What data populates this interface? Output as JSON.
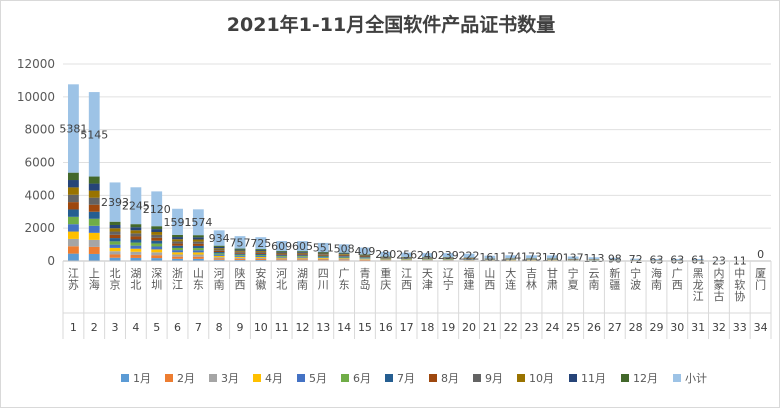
{
  "chart_data": {
    "type": "bar",
    "title": "2021年1-11月全国软件产品证书数量",
    "ylim": [
      0,
      12000
    ],
    "yticks": [
      0,
      2000,
      4000,
      6000,
      8000,
      10000,
      12000
    ],
    "index_labels": [
      "1",
      "2",
      "3",
      "4",
      "5",
      "6",
      "7",
      "8",
      "9",
      "10",
      "11",
      "12",
      "13",
      "14",
      "15",
      "16",
      "17",
      "18",
      "19",
      "20",
      "21",
      "22",
      "23",
      "24",
      "25",
      "26",
      "27",
      "28",
      "29",
      "30",
      "31",
      "32",
      "33",
      "34"
    ],
    "categories": [
      "江苏",
      "上海",
      "北京",
      "湖北",
      "深圳",
      "浙江",
      "山东",
      "河南",
      "陕西",
      "安徽",
      "河北",
      "湖南",
      "四川",
      "广东",
      "青岛",
      "重庆",
      "江西",
      "天津",
      "辽宁",
      "福建",
      "山西",
      "大连",
      "吉林",
      "甘肃",
      "宁夏",
      "云南",
      "新疆",
      "宁波",
      "海南",
      "广西",
      "黑龙江",
      "内蒙古",
      "中软协",
      "厦门"
    ],
    "total_label": "小计",
    "totals": [
      5381,
      5145,
      2393,
      2245,
      2120,
      1591,
      1574,
      934,
      757,
      725,
      609,
      605,
      551,
      508,
      409,
      280,
      256,
      240,
      239,
      222,
      161,
      174,
      173,
      170,
      137,
      113,
      98,
      72,
      63,
      63,
      61,
      23,
      11,
      0
    ],
    "total_labels": [
      "5381",
      "5145",
      "2393",
      "2245",
      "2120",
      "1591",
      "1574",
      "934",
      "757",
      "725",
      "609",
      "605",
      "551",
      "508",
      "409",
      "280",
      "256",
      "240",
      "239",
      "222",
      "161",
      "174",
      "173",
      "170",
      "137",
      "113",
      "98",
      "72",
      "63",
      "63",
      "61",
      "23",
      "11",
      "0"
    ],
    "series": [
      {
        "name": "1月",
        "color": "#5b9bd5"
      },
      {
        "name": "2月",
        "color": "#ed7d31"
      },
      {
        "name": "3月",
        "color": "#a5a5a5"
      },
      {
        "name": "4月",
        "color": "#ffc000"
      },
      {
        "name": "5月",
        "color": "#4472c4"
      },
      {
        "name": "6月",
        "color": "#70ad47"
      },
      {
        "name": "7月",
        "color": "#255e91"
      },
      {
        "name": "8月",
        "color": "#9e480e"
      },
      {
        "name": "9月",
        "color": "#636363"
      },
      {
        "name": "10月",
        "color": "#997300"
      },
      {
        "name": "11月",
        "color": "#264478"
      },
      {
        "name": "12月",
        "color": "#43682b"
      },
      {
        "name": "小计",
        "color": "#9dc3e6"
      }
    ],
    "legend_position": "bottom"
  }
}
